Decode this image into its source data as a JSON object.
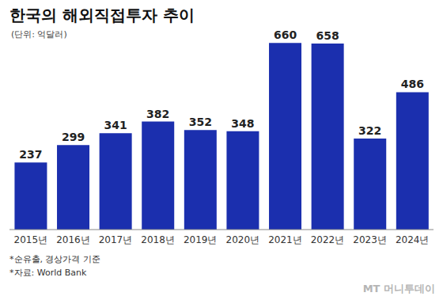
{
  "chart_data": {
    "type": "bar",
    "title": "한국의 해외직접투자 추이",
    "subtitle": "(단위: 억달러)",
    "categories": [
      "2015년",
      "2016년",
      "2017년",
      "2018년",
      "2019년",
      "2020년",
      "2021년",
      "2022년",
      "2023년",
      "2024년"
    ],
    "values": [
      237,
      299,
      341,
      382,
      352,
      348,
      660,
      658,
      322,
      486
    ],
    "color": "#1b2fae",
    "ylim": [
      0,
      700
    ],
    "grid": false,
    "data_labels": true,
    "tick_labels": "x",
    "notes": [
      "*순유출, 경상가격 기준",
      "*자료: World Bank"
    ],
    "watermark": "MT 머니투데이"
  }
}
